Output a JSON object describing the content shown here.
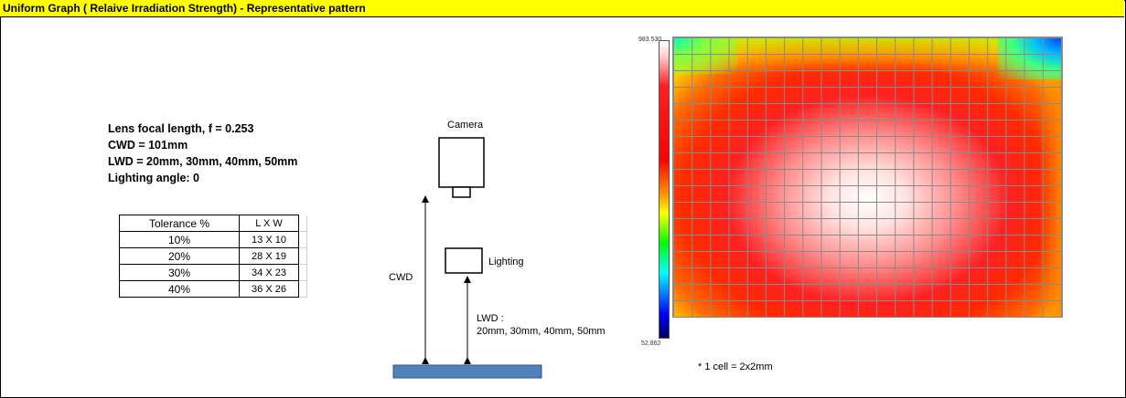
{
  "header": {
    "title": "Uniform Graph ( Relaive Irradiation Strength) - Representative pattern"
  },
  "specs": [
    "Lens focal  length,  f = 0.253",
    "CWD = 101mm",
    "LWD = 20mm, 30mm, 40mm, 50mm",
    "Lighting angle: 0"
  ],
  "tolerance_table": {
    "headers": [
      "Tolerance %",
      "L X W"
    ],
    "rows": [
      [
        "10%",
        "13 X 10"
      ],
      [
        "20%",
        "28 X 19"
      ],
      [
        "30%",
        "34 X 23"
      ],
      [
        "40%",
        "36 X 26"
      ]
    ]
  },
  "diagram": {
    "camera_label": "Camera",
    "lighting_label": "Lighting",
    "cwd_label": "CWD",
    "lwd_label_line1": "LWD :",
    "lwd_label_line2": "20mm, 30mm, 40mm, 50mm",
    "target_color": "#4f81bd"
  },
  "heatmap": {
    "scale_max": "983.530",
    "scale_min": "52.862",
    "cell_note": "* 1 cell = 2x2mm"
  }
}
